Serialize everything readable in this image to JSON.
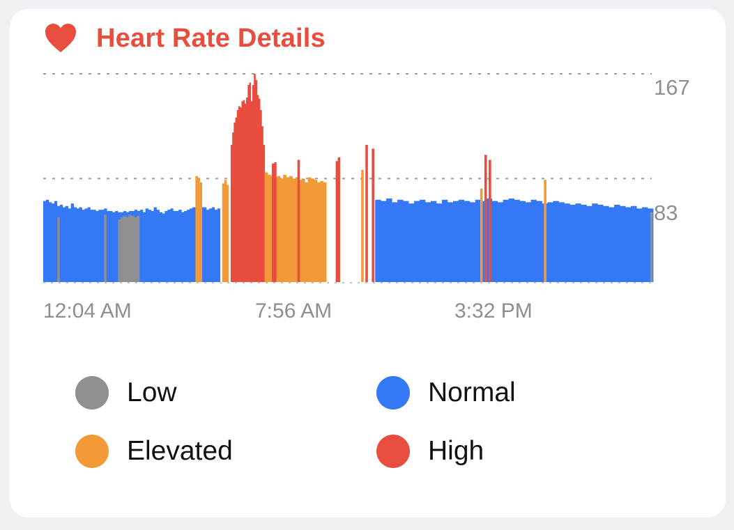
{
  "card": {
    "title": "Heart Rate Details",
    "icon": "heart-icon",
    "accent_color": "#e84d3d"
  },
  "chart_data": {
    "type": "bar",
    "title": "",
    "xlabel": "",
    "ylabel": "",
    "y_axis_ticks": [
      "167",
      "83"
    ],
    "y_reference_lines": [
      167,
      83
    ],
    "ylim": [
      0,
      167
    ],
    "x_tick_labels": [
      "12:04 AM",
      "7:56 AM",
      "3:32 PM"
    ],
    "x_range": [
      "12:04 AM",
      "11:59 PM"
    ],
    "grid": "dotted reference lines at 167 and 83",
    "category_colors": {
      "Low": "#8e8e93",
      "Normal": "#3478f6",
      "Elevated": "#f19a37",
      "High": "#e84d3d"
    },
    "segments": [
      {
        "from": "12:04 AM",
        "to": "7:00 AM",
        "category": "Normal",
        "values": [
          65,
          66,
          64,
          63,
          65,
          61,
          62,
          60,
          61,
          59,
          63,
          60,
          59,
          60,
          58,
          59,
          60,
          58,
          58,
          57,
          58,
          58,
          59,
          57,
          57,
          56,
          57,
          56,
          56,
          57,
          56,
          57,
          57,
          58,
          57,
          58,
          56,
          59,
          58,
          57,
          60,
          58,
          56,
          55,
          57,
          58,
          59,
          57,
          57,
          58,
          56,
          57,
          58,
          59,
          60,
          58,
          59,
          60,
          60,
          58,
          59,
          60,
          58,
          59
        ]
      },
      {
        "time": "12:40 AM",
        "category": "Low",
        "value": 52
      },
      {
        "time": "2:30 AM",
        "category": "Low",
        "value": 54
      },
      {
        "from": "3:00 AM",
        "to": "3:50 AM",
        "category": "Low",
        "values": [
          50,
          52,
          53,
          52,
          54,
          53,
          52,
          53
        ]
      },
      {
        "time": "6:05 AM",
        "category": "Elevated",
        "value": 85
      },
      {
        "time": "6:10 AM",
        "category": "Elevated",
        "value": 83
      },
      {
        "time": "6:15 AM",
        "category": "Elevated",
        "value": 80
      },
      {
        "from": "7:05 AM",
        "to": "7:20 AM",
        "category": "Elevated",
        "values": [
          79,
          82,
          78
        ]
      },
      {
        "from": "7:25 AM",
        "to": "8:45 AM",
        "category": "High",
        "values": [
          110,
          120,
          128,
          132,
          138,
          141,
          140,
          145,
          146,
          143,
          148,
          158,
          160,
          145,
          158,
          167,
          162,
          150,
          147,
          138,
          125,
          110
        ]
      },
      {
        "from": "8:45 AM",
        "to": "11:10 AM",
        "category": "Elevated",
        "values": [
          88,
          86,
          85,
          84,
          85,
          83,
          86,
          84,
          85,
          83,
          84,
          82,
          83,
          80,
          84,
          83,
          82,
          80,
          81,
          80
        ]
      },
      {
        "time": "9:05 AM",
        "category": "High",
        "value": 95
      },
      {
        "time": "9:10 AM",
        "category": "High",
        "value": 96
      },
      {
        "time": "10:05 AM",
        "category": "High",
        "value": 98
      },
      {
        "time": "11:35 AM",
        "category": "High",
        "value": 97
      },
      {
        "time": "11:40 AM",
        "category": "High",
        "value": 100
      },
      {
        "time": "12:35 PM",
        "category": "Elevated",
        "value": 90
      },
      {
        "time": "12:45 PM",
        "category": "High",
        "value": 110
      },
      {
        "time": "1:00 PM",
        "category": "High",
        "value": 107
      },
      {
        "from": "1:05 PM",
        "to": "11:59 PM",
        "category": "Normal",
        "values": [
          66,
          65,
          67,
          64,
          66,
          65,
          63,
          65,
          66,
          64,
          65,
          63,
          66,
          64,
          65,
          66,
          65,
          64,
          66,
          65,
          67,
          65,
          64,
          66,
          67,
          66,
          65,
          64,
          66,
          65,
          63,
          64,
          65,
          64,
          63,
          62,
          63,
          62,
          61,
          63,
          62,
          61,
          60,
          62,
          61,
          60,
          61,
          59,
          60,
          59
        ]
      },
      {
        "time": "5:15 PM",
        "category": "Elevated",
        "value": 75
      },
      {
        "time": "5:25 PM",
        "category": "High",
        "value": 102
      },
      {
        "time": "5:35 PM",
        "category": "High",
        "value": 98
      },
      {
        "time": "7:45 PM",
        "category": "Elevated",
        "value": 82
      },
      {
        "time": "11:55 PM",
        "category": "Low",
        "value": 56
      }
    ]
  },
  "legend": {
    "items": [
      {
        "label": "Low",
        "color": "#8e8e93"
      },
      {
        "label": "Normal",
        "color": "#3478f6"
      },
      {
        "label": "Elevated",
        "color": "#f19a37"
      },
      {
        "label": "High",
        "color": "#e84d3d"
      }
    ]
  }
}
